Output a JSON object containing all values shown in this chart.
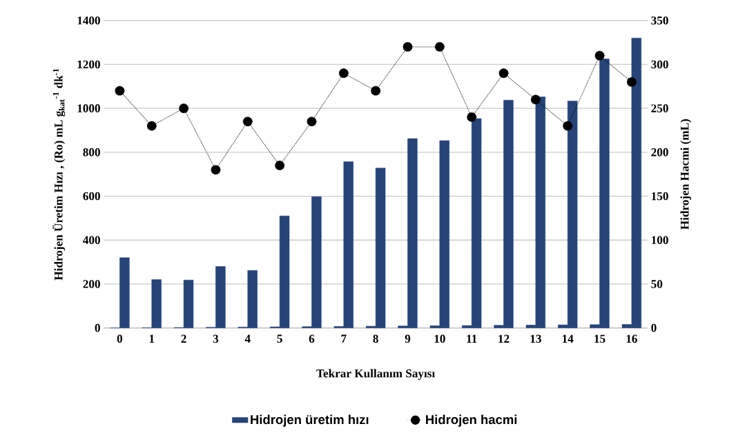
{
  "chart_data": {
    "type": "bar",
    "xlabel": "Tekrar Kullanım Sayısı",
    "ylabel": "Hidrojen Üretim Hızı , (Ro)  mL g$_{kat}$$^{-1}$ dk$^{-1}$",
    "y2label": "Hidrojen Hacmi (mL)",
    "categories": [
      "0",
      "1",
      "2",
      "3",
      "4",
      "5",
      "6",
      "7",
      "8",
      "9",
      "10",
      "11",
      "12",
      "13",
      "14",
      "15",
      "16"
    ],
    "series": [
      {
        "color": "#264478",
        "values": [
          0,
          1,
          2,
          3,
          4,
          5,
          6,
          7,
          8,
          9,
          10,
          11,
          12,
          13,
          14,
          15,
          16
        ]
      },
      {
        "name": "Hidrojen üretim hızı",
        "color": "#264478",
        "values": [
          320,
          220,
          218,
          280,
          262,
          510,
          598,
          757,
          728,
          862,
          853,
          953,
          1037,
          1052,
          1033,
          1225,
          1320
        ]
      },
      {
        "name": "Hidrojen hacmi",
        "type": "line",
        "axis": "y2",
        "color": "#000000",
        "marker": "circle",
        "line_style": "dotted",
        "values": [
          270,
          230,
          250,
          180,
          235,
          185,
          235,
          290,
          270,
          320,
          320,
          240,
          290,
          260,
          230,
          310,
          280
        ]
      }
    ],
    "ylim": [
      0,
      1400
    ],
    "yticks": [
      0,
      200,
      400,
      600,
      800,
      1000,
      1200,
      1400
    ],
    "y2lim": [
      0,
      350
    ],
    "y2ticks": [
      0,
      50,
      100,
      150,
      200,
      250,
      300,
      350
    ],
    "grid": "y",
    "legend": "bottom"
  }
}
